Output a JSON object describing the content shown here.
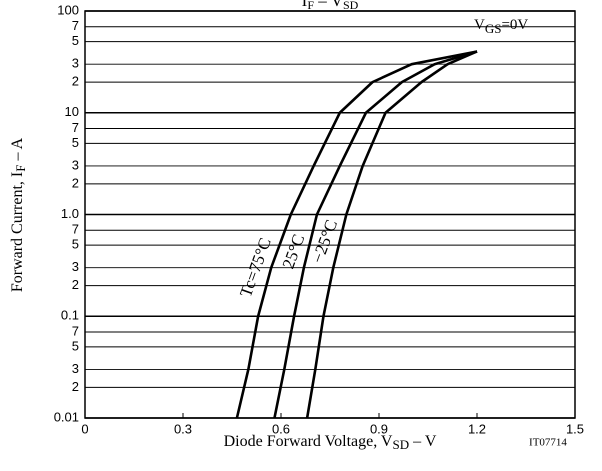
{
  "chart_data": {
    "type": "line",
    "title": [
      "I",
      "F",
      " – V",
      "SD"
    ],
    "xlabel": [
      "Diode Forward Voltage, V",
      "SD",
      "  –  V"
    ],
    "ylabel": [
      "Forward Current, I",
      "F",
      "  –  A"
    ],
    "annotations": {
      "condition": [
        "V",
        "GS",
        "=0V"
      ],
      "code": "IT07714"
    },
    "xlim": [
      0,
      1.5
    ],
    "xticks": [
      0,
      0.3,
      0.6,
      0.9,
      1.2,
      1.5
    ],
    "ylim": [
      0.01,
      100
    ],
    "log_y": true,
    "grid": true,
    "yticks": [
      100,
      {
        "value": 70,
        "label": "7"
      },
      {
        "value": 50,
        "label": "5"
      },
      {
        "value": 30,
        "label": "3"
      },
      {
        "value": 20,
        "label": "2"
      },
      10,
      {
        "value": 7,
        "label": "7"
      },
      {
        "value": 5,
        "label": "5"
      },
      {
        "value": 3,
        "label": "3"
      },
      {
        "value": 2,
        "label": "2"
      },
      {
        "value": 1,
        "label": "1.0"
      },
      {
        "value": 0.7,
        "label": "7"
      },
      {
        "value": 0.5,
        "label": "5"
      },
      {
        "value": 0.3,
        "label": "3"
      },
      {
        "value": 0.2,
        "label": "2"
      },
      0.1,
      {
        "value": 0.07,
        "label": "7"
      },
      {
        "value": 0.05,
        "label": "5"
      },
      {
        "value": 0.03,
        "label": "3"
      },
      {
        "value": 0.02,
        "label": "2"
      },
      0.01
    ],
    "series": [
      {
        "name": "Tc=75°C",
        "color": "#000000",
        "x": [
          0.465,
          0.5,
          0.53,
          0.57,
          0.63,
          0.7,
          0.78,
          0.88,
          1.0,
          1.2
        ],
        "values": [
          0.01,
          0.03,
          0.1,
          0.3,
          1,
          3,
          10,
          20,
          30,
          40
        ]
      },
      {
        "name": "25°C",
        "color": "#000000",
        "x": [
          0.58,
          0.61,
          0.64,
          0.67,
          0.71,
          0.78,
          0.86,
          0.97,
          1.07,
          1.2
        ],
        "values": [
          0.01,
          0.03,
          0.1,
          0.3,
          1,
          3,
          10,
          20,
          30,
          40
        ]
      },
      {
        "name": "−25°C",
        "color": "#000000",
        "x": [
          0.68,
          0.705,
          0.73,
          0.76,
          0.8,
          0.85,
          0.92,
          1.03,
          1.11,
          1.2
        ],
        "values": [
          0.01,
          0.03,
          0.1,
          0.3,
          1,
          3,
          10,
          20,
          30,
          40
        ]
      }
    ]
  }
}
